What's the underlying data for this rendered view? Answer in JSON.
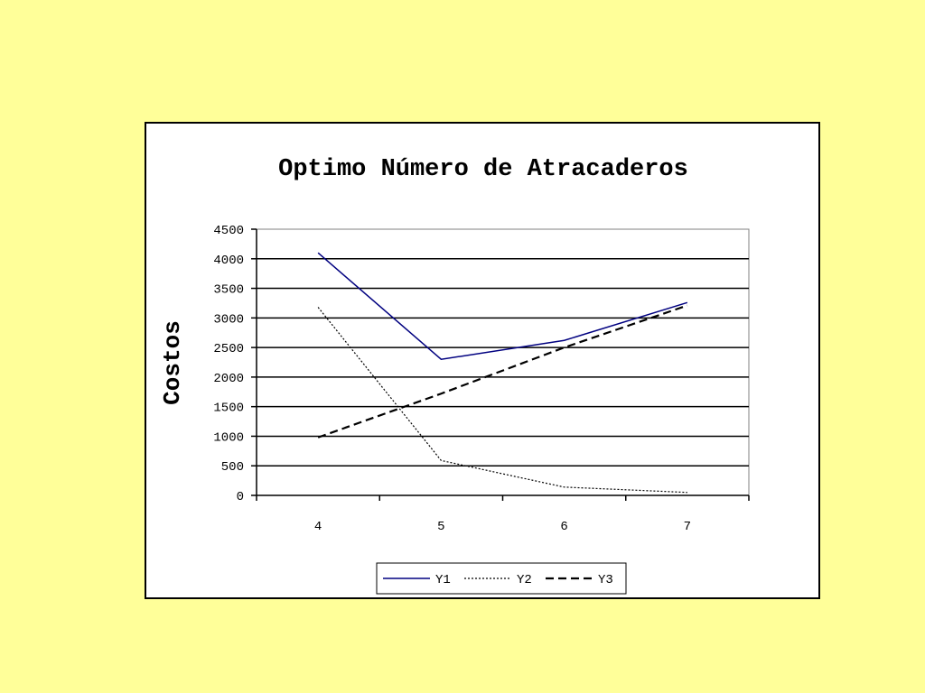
{
  "chart_data": {
    "type": "line",
    "title": "Optimo Número de Atracaderos",
    "xlabel": "",
    "ylabel": "Costos",
    "categories": [
      "4",
      "5",
      "6",
      "7"
    ],
    "ylim": [
      0,
      4500
    ],
    "yticks": [
      0,
      500,
      1000,
      1500,
      2000,
      2500,
      3000,
      3500,
      4000,
      4500
    ],
    "grid": true,
    "legend_position": "bottom",
    "series": [
      {
        "name": "Y1",
        "values": [
          4100,
          2300,
          2620,
          3260
        ],
        "color": "#000080",
        "style": "solid"
      },
      {
        "name": "Y2",
        "values": [
          3180,
          590,
          140,
          50
        ],
        "color": "#000000",
        "style": "dotted"
      },
      {
        "name": "Y3",
        "values": [
          980,
          1720,
          2500,
          3210
        ],
        "color": "#000000",
        "style": "dashed"
      }
    ]
  }
}
